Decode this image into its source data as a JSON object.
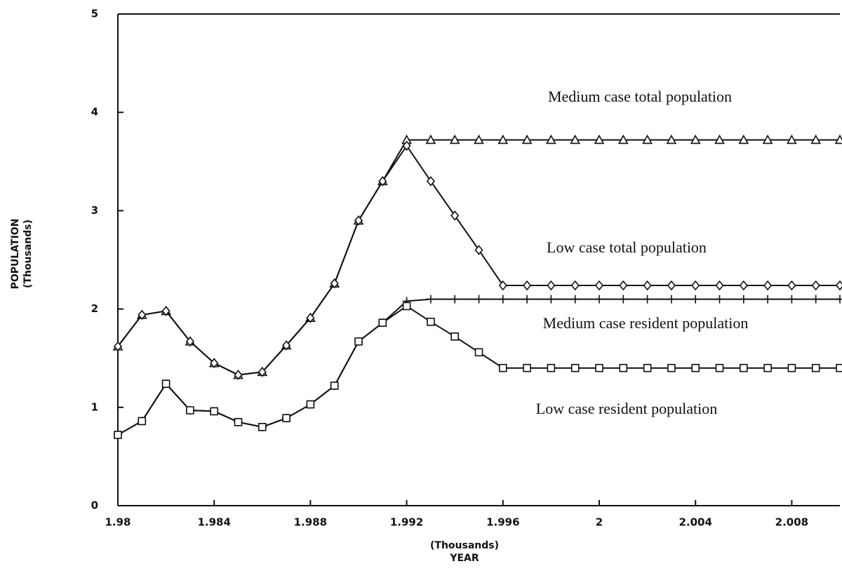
{
  "chart_data": {
    "type": "line",
    "xlabel": [
      "(Thousands)",
      "YEAR"
    ],
    "ylabel": [
      "POPULATION",
      "(Thousands)"
    ],
    "x": [
      1.98,
      1.981,
      1.982,
      1.983,
      1.984,
      1.985,
      1.986,
      1.987,
      1.988,
      1.989,
      1.99,
      1.991,
      1.992,
      1.993,
      1.994,
      1.995,
      1.996,
      1.997,
      1.998,
      1.999,
      2,
      2.001,
      2.002,
      2.003,
      2.004,
      2.005,
      2.006,
      2.007,
      2.008,
      2.009,
      2.01
    ],
    "series": [
      {
        "name": "Medium case total population",
        "color": "#111111",
        "marker": "triangle",
        "values": [
          1.62,
          1.94,
          1.98,
          1.67,
          1.45,
          1.33,
          1.36,
          1.63,
          1.91,
          2.26,
          2.9,
          3.3,
          3.72,
          3.72,
          3.72,
          3.72,
          3.72,
          3.72,
          3.72,
          3.72,
          3.72,
          3.72,
          3.72,
          3.72,
          3.72,
          3.72,
          3.72,
          3.72,
          3.72,
          3.72,
          3.72
        ]
      },
      {
        "name": "Low case total population",
        "color": "#111111",
        "marker": "diamond",
        "values": [
          1.62,
          1.94,
          1.98,
          1.67,
          1.45,
          1.33,
          1.36,
          1.63,
          1.91,
          2.26,
          2.9,
          3.3,
          3.66,
          3.3,
          2.95,
          2.6,
          2.24,
          2.24,
          2.24,
          2.24,
          2.24,
          2.24,
          2.24,
          2.24,
          2.24,
          2.24,
          2.24,
          2.24,
          2.24,
          2.24,
          2.24
        ]
      },
      {
        "name": "Medium case resident population",
        "color": "#111111",
        "marker": "plus",
        "values": [
          0.72,
          0.86,
          1.24,
          0.97,
          0.96,
          0.85,
          0.8,
          0.89,
          1.03,
          1.22,
          1.67,
          1.86,
          2.08,
          2.1,
          2.1,
          2.1,
          2.1,
          2.1,
          2.1,
          2.1,
          2.1,
          2.1,
          2.1,
          2.1,
          2.1,
          2.1,
          2.1,
          2.1,
          2.1,
          2.1,
          2.1
        ]
      },
      {
        "name": "Low case resident population",
        "color": "#111111",
        "marker": "square",
        "values": [
          0.72,
          0.86,
          1.24,
          0.97,
          0.96,
          0.85,
          0.8,
          0.89,
          1.03,
          1.22,
          1.67,
          1.86,
          2.03,
          1.87,
          1.72,
          1.56,
          1.4,
          1.4,
          1.4,
          1.4,
          1.4,
          1.4,
          1.4,
          1.4,
          1.4,
          1.4,
          1.4,
          1.4,
          1.4,
          1.4,
          1.4
        ]
      }
    ],
    "xlim": [
      1.98,
      2.01
    ],
    "xticks": [
      1.98,
      1.984,
      1.988,
      1.992,
      1.996,
      2,
      2.004,
      2.008
    ],
    "ylim": [
      0,
      5
    ],
    "yticks": [
      0,
      1,
      2,
      3,
      4,
      5
    ],
    "grid": false
  }
}
